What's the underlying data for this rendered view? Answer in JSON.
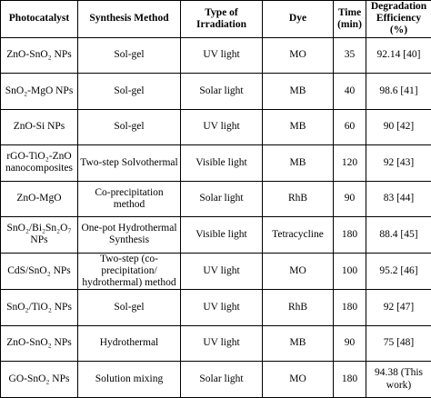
{
  "table": {
    "headers": [
      "Photocatalyst",
      "Synthesis Method",
      "Type of Irradiation",
      "Dye",
      "Time (min)",
      "Degradation Efficiency (%)"
    ],
    "rows": [
      {
        "photocatalyst": "ZnO-SnO₂ NPs",
        "method": "Sol-gel",
        "irradiation": "UV light",
        "dye": "MO",
        "time": "35",
        "efficiency": "92.14 [40]"
      },
      {
        "photocatalyst": "SnO₂-MgO NPs",
        "method": "Sol-gel",
        "irradiation": "Solar light",
        "dye": "MB",
        "time": "40",
        "efficiency": "98.6 [41]"
      },
      {
        "photocatalyst": "ZnO-Si NPs",
        "method": "Sol-gel",
        "irradiation": "UV light",
        "dye": "MB",
        "time": "60",
        "efficiency": "90 [42]"
      },
      {
        "photocatalyst": "rGO-TiO₂-ZnO nanocomposites",
        "method": "Two-step Solvothermal",
        "irradiation": "Visible light",
        "dye": "MB",
        "time": "120",
        "efficiency": "92 [43]"
      },
      {
        "photocatalyst": "ZnO-MgO",
        "method": "Co-precipitation method",
        "irradiation": "Solar light",
        "dye": "RhB",
        "time": "90",
        "efficiency": "83 [44]"
      },
      {
        "photocatalyst": "SnO₂/Bi₂Sn₂O₇ NPs",
        "method": "One-pot Hydrothermal Synthesis",
        "irradiation": "Visible light",
        "dye": "Tetracycline",
        "time": "180",
        "efficiency": "88.4 [45]"
      },
      {
        "photocatalyst": "CdS/SnO₂ NPs",
        "method": "Two-step (co-precipitation/ hydrothermal) method",
        "irradiation": "UV light",
        "dye": "MO",
        "time": "100",
        "efficiency": "95.2 [46]"
      },
      {
        "photocatalyst": "SnO₂/TiO₂ NPs",
        "method": "Sol-gel",
        "irradiation": "UV light",
        "dye": "RhB",
        "time": "180",
        "efficiency": "92 [47]"
      },
      {
        "photocatalyst": "ZnO-SnO₂ NPs",
        "method": "Hydrothermal",
        "irradiation": "UV light",
        "dye": "MB",
        "time": "90",
        "efficiency": "75 [48]"
      },
      {
        "photocatalyst": "GO-SnO₂ NPs",
        "method": "Solution mixing",
        "irradiation": "Solar light",
        "dye": "MO",
        "time": "180",
        "efficiency": "94.38 (This work)"
      }
    ]
  }
}
